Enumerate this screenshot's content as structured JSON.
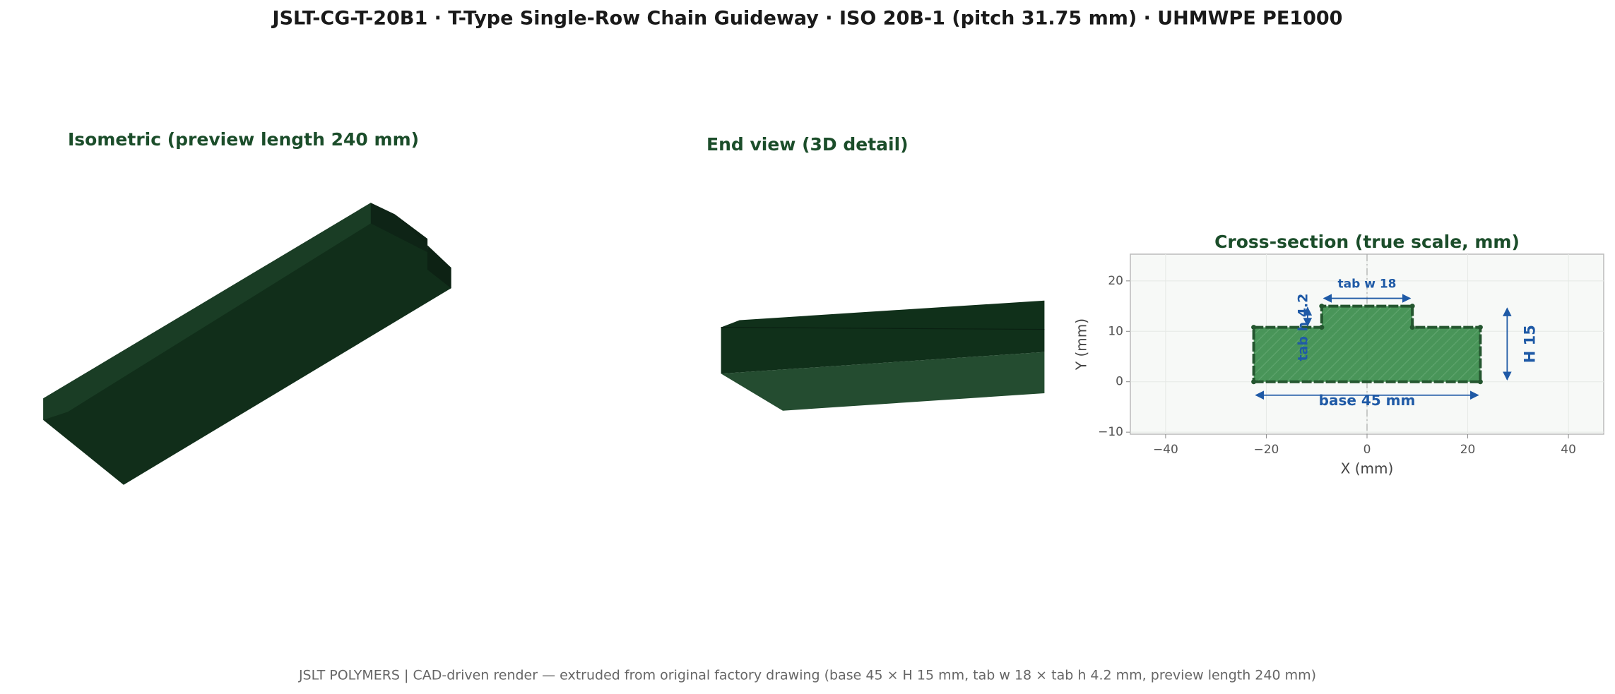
{
  "title": "JSLT-CG-T-20B1   ·   T-Type Single-Row Chain Guideway   ·   ISO 20B-1 (pitch 31.75 mm)   ·   UHMWPE PE1000",
  "views": [
    {
      "title": "Isometric  (preview length 240 mm)"
    },
    {
      "title": "End view (3D detail)"
    }
  ],
  "footer": "JSLT POLYMERS  |  CAD-driven render — extruded from original factory drawing  (base 45 × H 15 mm, tab w 18 × tab h 4.2 mm, preview length 240 mm)",
  "chart_data": {
    "type": "polygon",
    "title": "Cross-section (true scale, mm)",
    "x": [
      -22.5,
      22.5,
      22.5,
      9,
      9,
      -9,
      -9,
      -22.5
    ],
    "y": [
      0,
      0,
      10.8,
      10.8,
      15,
      15,
      10.8,
      10.8
    ],
    "color": "#3f8f50",
    "edge_color": "#24562f",
    "xlabel": "X  (mm)",
    "ylabel": "Y  (mm)",
    "xlim": [
      -47,
      47
    ],
    "ylim": [
      -10.4,
      25.3
    ],
    "xticks": [
      {
        "value": -40,
        "label": "−40"
      },
      {
        "value": -20,
        "label": "−20"
      },
      0,
      20,
      40
    ],
    "yticks": [
      {
        "value": -10,
        "label": "−10"
      },
      0,
      10,
      20
    ],
    "grid": true,
    "annotations": {
      "tab_width": "tab w 18",
      "tab_height": "tab h 4.2",
      "base": "base 45 mm",
      "height": "H 15"
    }
  }
}
